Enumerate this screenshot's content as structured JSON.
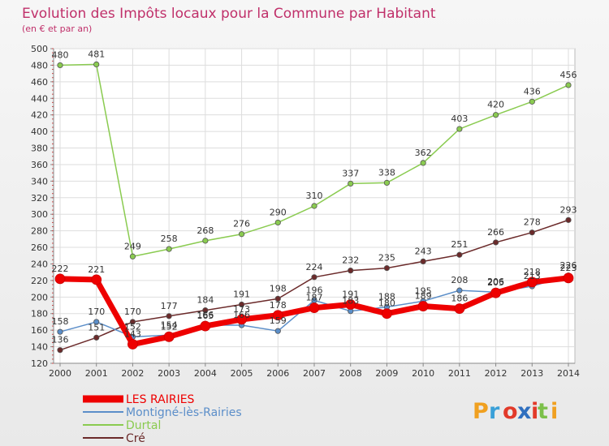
{
  "chart_data": {
    "type": "line",
    "title": "Evolution des Impôts locaux pour la Commune par Habitant",
    "subtitle": "(en € et par an)",
    "categories": [
      "2000",
      "2001",
      "2002",
      "2003",
      "2004",
      "2005",
      "2006",
      "2007",
      "2008",
      "2009",
      "2010",
      "2011",
      "2012",
      "2013",
      "2014"
    ],
    "ylim": [
      120,
      500
    ],
    "yticks": [
      120,
      140,
      160,
      180,
      200,
      220,
      240,
      260,
      280,
      300,
      320,
      340,
      360,
      380,
      400,
      420,
      440,
      460,
      480,
      500
    ],
    "grid": true,
    "series": [
      {
        "name": "LES RAIRIES",
        "color": "#ee0000",
        "values": [
          222,
          221,
          143,
          152,
          165,
          173,
          178,
          187,
          191,
          180,
          189,
          186,
          205,
          218,
          223
        ]
      },
      {
        "name": "Montigné-lès-Rairies",
        "color": "#5b8ec9",
        "values": [
          158,
          170,
          152,
          154,
          166,
          166,
          159,
          196,
          183,
          188,
          195,
          208,
          206,
          213,
          226
        ]
      },
      {
        "name": "Durtal",
        "color": "#8acb50",
        "values": [
          480,
          481,
          249,
          258,
          268,
          276,
          290,
          310,
          337,
          338,
          362,
          403,
          420,
          436,
          456
        ]
      },
      {
        "name": "Cré",
        "color": "#6b2a2a",
        "values": [
          136,
          151,
          170,
          177,
          184,
          191,
          198,
          224,
          232,
          235,
          243,
          251,
          266,
          278,
          293
        ]
      }
    ]
  },
  "brand": {
    "p": "P",
    "r": "r",
    "o": "o",
    "x": "x",
    "i": "i",
    "t": "t",
    "i2": "i"
  }
}
